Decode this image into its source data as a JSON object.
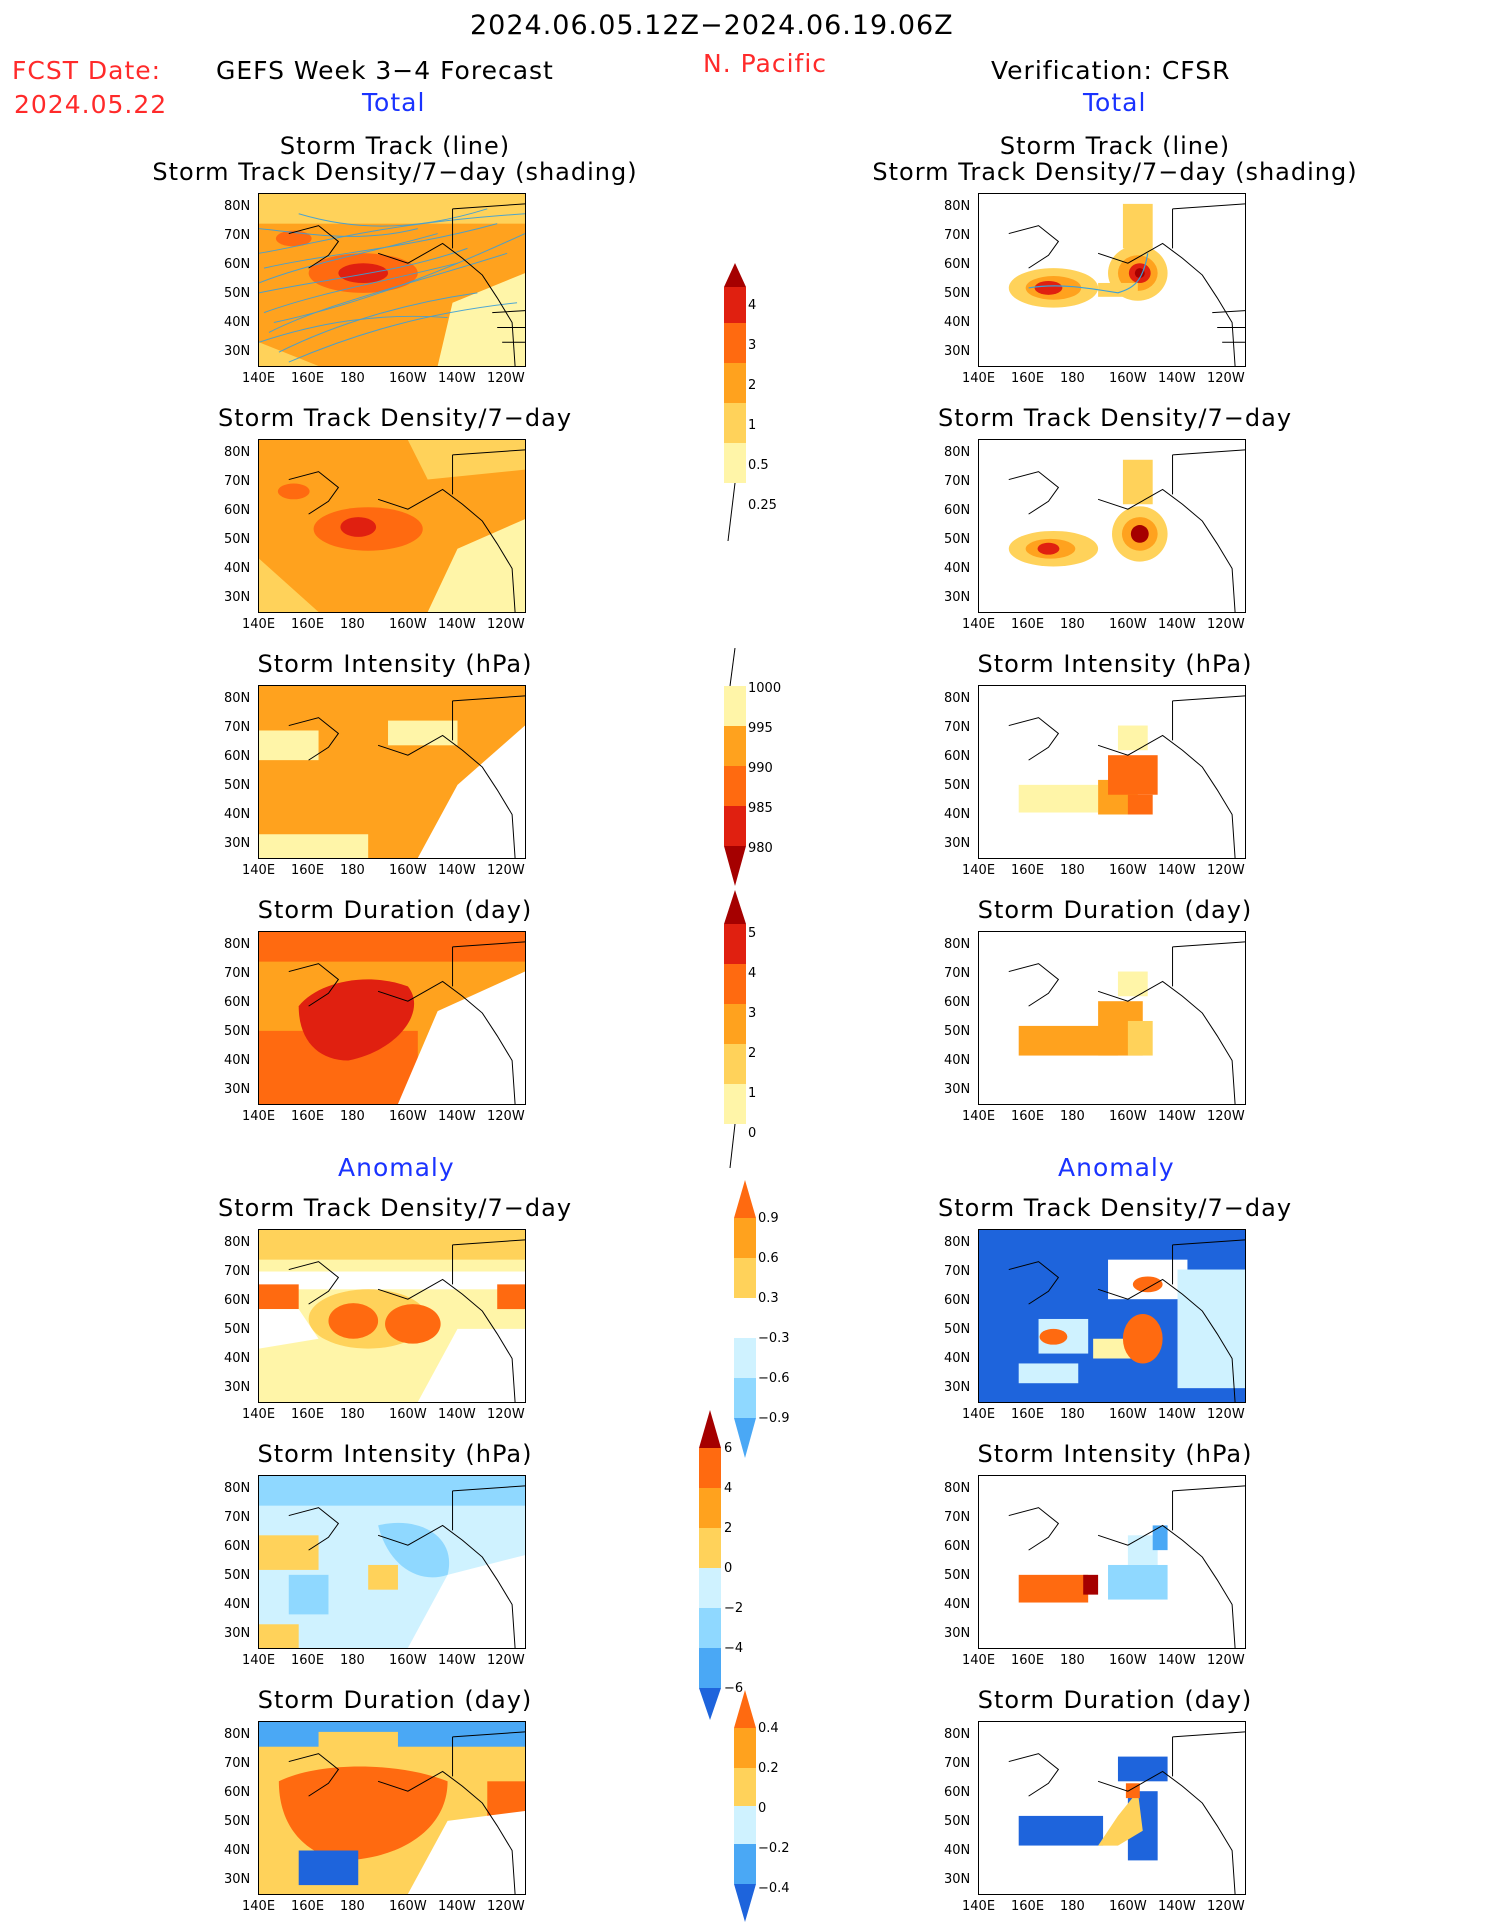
{
  "header": {
    "date_range": "2024.06.05.12Z−2024.06.19.06Z",
    "fcst_date_label": "FCST Date:",
    "fcst_date_value": "2024.05.22",
    "forecast_title": "GEFS Week 3−4 Forecast",
    "region": "N. Pacific",
    "verification_title": "Verification: CFSR",
    "total_left": "Total",
    "total_right": "Total",
    "anomaly_left": "Anomaly",
    "anomaly_right": "Anomaly"
  },
  "panels": {
    "track_line_1": "Storm Track (line)",
    "track_line_2": "Storm Track Density/7−day (shading)",
    "density": "Storm Track Density/7−day",
    "intensity": "Storm Intensity (hPa)",
    "duration": "Storm Duration (day)"
  },
  "axes": {
    "lat_labels": [
      "80N",
      "70N",
      "60N",
      "50N",
      "40N",
      "30N"
    ],
    "lon_labels": [
      "140E",
      "160E",
      "180",
      "160W",
      "140W",
      "120W"
    ]
  },
  "colorbars": {
    "density_total": [
      "4",
      "3",
      "2",
      "1",
      "0.5",
      "0.25"
    ],
    "intensity_total": [
      "1000",
      "995",
      "990",
      "985",
      "980"
    ],
    "duration_total": [
      "5",
      "4",
      "3",
      "2",
      "1",
      "0"
    ],
    "density_anom": [
      "0.9",
      "0.6",
      "0.3",
      "−0.3",
      "−0.6",
      "−0.9"
    ],
    "intensity_anom": [
      "6",
      "4",
      "2",
      "0",
      "−2",
      "−4",
      "−6"
    ],
    "duration_anom": [
      "0.4",
      "0.2",
      "0",
      "−0.2",
      "−0.4"
    ]
  },
  "colors": {
    "title_red": "#ff2a2a",
    "title_blue": "#1a33ff",
    "pos_1": "#fff5a8",
    "pos_2": "#ffd25a",
    "pos_3": "#ffa21e",
    "pos_4": "#ff6a10",
    "pos_5": "#e02010",
    "pos_6": "#a50000",
    "neg_1": "#cff2ff",
    "neg_2": "#8fd8ff",
    "neg_3": "#4aa8f5",
    "neg_4": "#1e64dc"
  }
}
